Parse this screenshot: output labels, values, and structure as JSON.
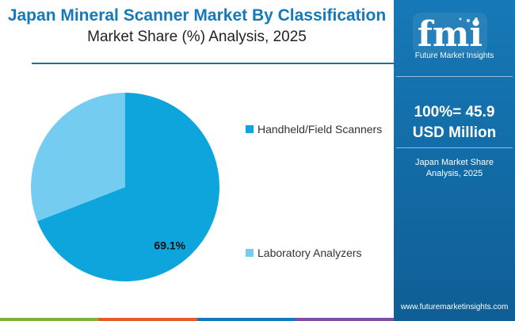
{
  "header": {
    "title": "Japan Mineral Scanner Market By Classification",
    "subtitle": "Market Share (%) Analysis, 2025"
  },
  "sidebar": {
    "logo_text": "fmi",
    "logo_caption": "Future Market Insights",
    "total_line1": "100%= 45.9",
    "total_line2": "USD Million",
    "note_line1": "Japan Market Share",
    "note_line2": "Analysis, 2025",
    "url": "www.futuremarketinsights.com"
  },
  "colors": {
    "accent": "#1479b8",
    "sidebar": "#1679b7",
    "slice_primary": "#0ea5dc",
    "slice_secondary": "#74cdf1"
  },
  "chart_data": {
    "type": "pie",
    "title": "Japan Mineral Scanner Market By Classification",
    "subtitle": "Market Share (%) Analysis, 2025",
    "slices": [
      {
        "label": "Handheld/Field Scanners",
        "value": 69.1,
        "data_label": "69.1%",
        "color": "#0ea5dc"
      },
      {
        "label": "Laboratory Analyzers",
        "value": 30.9,
        "data_label": "",
        "color": "#74cdf1"
      }
    ],
    "legend_position": "right"
  },
  "footer": {
    "bar_colors": [
      "#7fb13d",
      "#e85a2a",
      "#1479b8",
      "#7e4ea0"
    ]
  }
}
